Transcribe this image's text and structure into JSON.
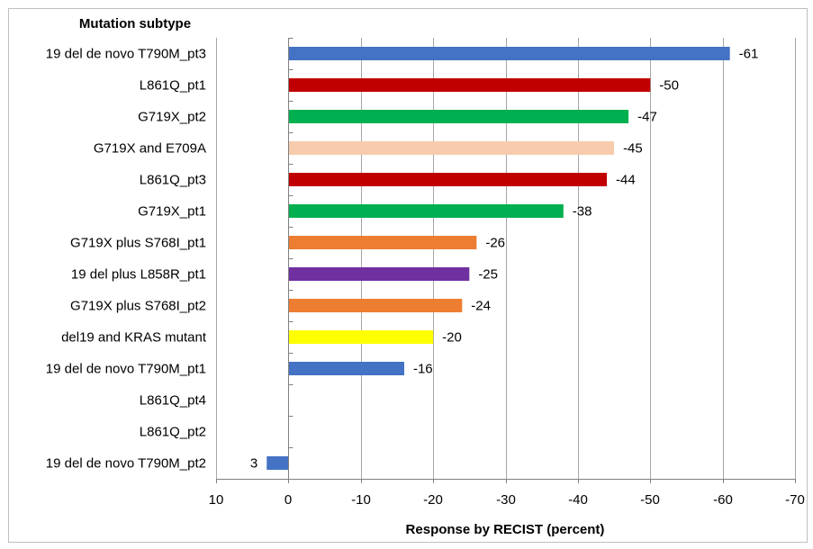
{
  "chart_data": {
    "type": "bar",
    "orientation": "horizontal",
    "title": "Mutation subtype",
    "xlabel": "Response by RECIST (percent)",
    "ylabel": "",
    "xlim": [
      10,
      -70
    ],
    "x_reversed": true,
    "x_ticks": [
      10,
      0,
      -10,
      -20,
      -30,
      -40,
      -50,
      -60,
      -70
    ],
    "x_tick_labels": [
      "10",
      "0",
      "-10",
      "-20",
      "-30",
      "-40",
      "-50",
      "-60",
      "-70"
    ],
    "grid": "vertical",
    "legend": "none",
    "categories": [
      "19 del de novo T790M_pt3",
      "L861Q_pt1",
      "G719X_pt2",
      "G719X and E709A",
      "L861Q_pt3",
      "G719X_pt1",
      "G719X plus S768I_pt1",
      "19 del plus L858R_pt1",
      "G719X plus S768I_pt2",
      "del19 and KRAS mutant",
      "19 del de novo T790M_pt1",
      "L861Q_pt4",
      "L861Q_pt2",
      "19 del de novo T790M_pt2"
    ],
    "values": [
      -61,
      -50,
      -47,
      -45,
      -44,
      -38,
      -26,
      -25,
      -24,
      -20,
      -16,
      null,
      null,
      3
    ],
    "data_labels": [
      "-61",
      "-50",
      "-47",
      "-45",
      "-44",
      "-38",
      "-26",
      "-25",
      "-24",
      "-20",
      "-16",
      "",
      "",
      "3"
    ],
    "colors": [
      "#4472c4",
      "#c00000",
      "#00b050",
      "#f8cbad",
      "#c00000",
      "#00b050",
      "#ed7d31",
      "#7030a0",
      "#ed7d31",
      "#ffff00",
      "#4472c4",
      "#4472c4",
      "#4472c4",
      "#4472c4"
    ]
  }
}
